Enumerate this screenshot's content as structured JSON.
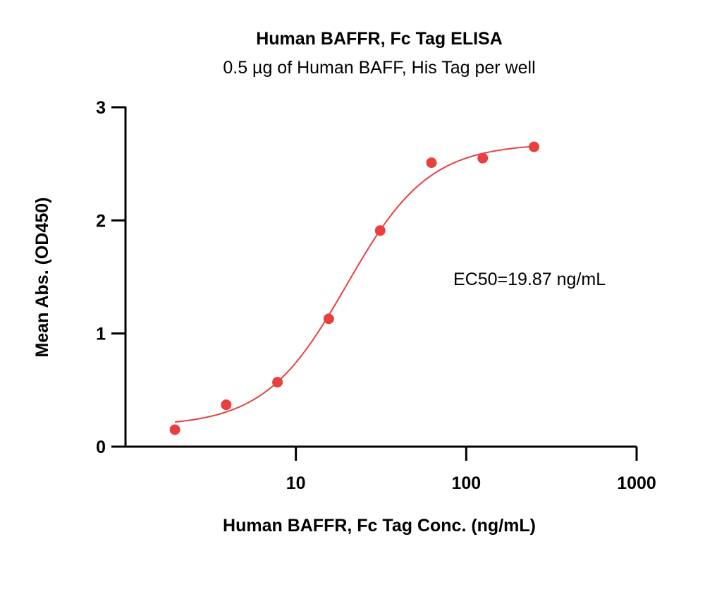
{
  "chart_data": {
    "type": "scatter",
    "title": "Human BAFFR, Fc Tag ELISA",
    "subtitle": "0.5 µg of Human BAFF, His Tag per well",
    "xlabel": "Human BAFFR, Fc Tag Conc. (ng/mL)",
    "ylabel": "Mean Abs. (OD450)",
    "x_scale": "log",
    "xlim": [
      1,
      1000
    ],
    "ylim": [
      0,
      3
    ],
    "x_ticks": [
      10,
      100,
      1000
    ],
    "x_tick_labels": [
      "10",
      "100",
      "1000"
    ],
    "y_ticks": [
      0,
      1,
      2,
      3
    ],
    "y_tick_labels": [
      "0",
      "1",
      "2",
      "3"
    ],
    "grid": false,
    "series": [
      {
        "x": [
          1.95,
          3.9,
          7.8,
          15.6,
          31.25,
          62.5,
          125,
          250
        ],
        "y": [
          0.15,
          0.37,
          0.57,
          1.13,
          1.91,
          2.51,
          2.55,
          2.65
        ]
      }
    ],
    "fit": {
      "model": "4PL",
      "bottom": 0.18,
      "top": 2.68,
      "ec50": 19.87,
      "hill": 1.8
    },
    "annotation": "EC50=19.87 ng/mL",
    "colors": {
      "series": "#e8403f",
      "axis": "#000000"
    }
  }
}
